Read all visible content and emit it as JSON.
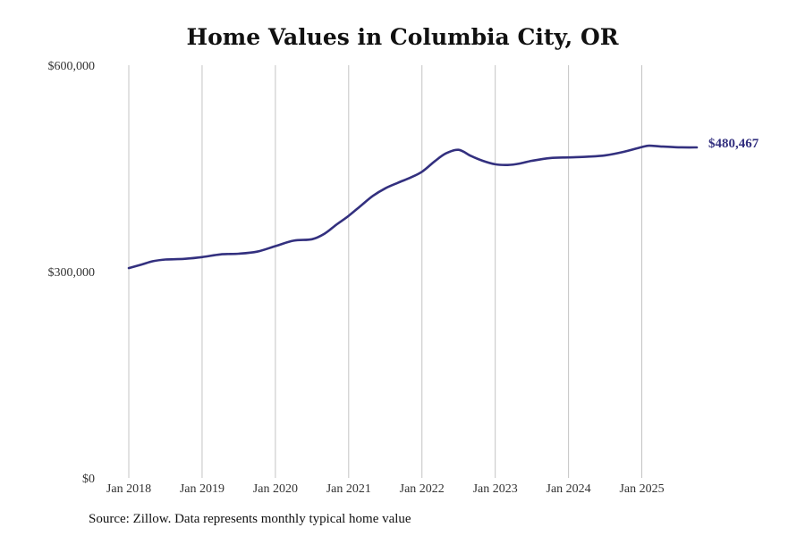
{
  "title": "Home Values in Columbia City, OR",
  "source": "Source: Zillow. Data represents monthly typical home value",
  "colors": {
    "line": "#33307f",
    "grid": "#c4c4c4",
    "text": "#333333"
  },
  "chart_data": {
    "type": "line",
    "title": "Home Values in Columbia City, OR",
    "xlabel": "",
    "ylabel": "",
    "x_range": [
      2018.0,
      2025.75
    ],
    "ylim": [
      0,
      600000
    ],
    "y_ticks": [
      {
        "value": 0,
        "label": "$0"
      },
      {
        "value": 300000,
        "label": "$300,000"
      },
      {
        "value": 600000,
        "label": "$600,000"
      }
    ],
    "x_ticks": [
      {
        "value": 2018,
        "label": "Jan 2018"
      },
      {
        "value": 2019,
        "label": "Jan 2019"
      },
      {
        "value": 2020,
        "label": "Jan 2020"
      },
      {
        "value": 2021,
        "label": "Jan 2021"
      },
      {
        "value": 2022,
        "label": "Jan 2022"
      },
      {
        "value": 2023,
        "label": "Jan 2023"
      },
      {
        "value": 2024,
        "label": "Jan 2024"
      },
      {
        "value": 2025,
        "label": "Jan 2025"
      }
    ],
    "grid": "vertical",
    "series": [
      {
        "name": "Typical home value",
        "end_label": "$480,467",
        "points": [
          [
            2018.0,
            305000
          ],
          [
            2018.17,
            310000
          ],
          [
            2018.33,
            315000
          ],
          [
            2018.5,
            317500
          ],
          [
            2018.75,
            318500
          ],
          [
            2019.0,
            321000
          ],
          [
            2019.25,
            325000
          ],
          [
            2019.5,
            326000
          ],
          [
            2019.75,
            329000
          ],
          [
            2020.0,
            337000
          ],
          [
            2020.25,
            345000
          ],
          [
            2020.5,
            347000
          ],
          [
            2020.67,
            355000
          ],
          [
            2020.83,
            368000
          ],
          [
            2021.0,
            381000
          ],
          [
            2021.17,
            396000
          ],
          [
            2021.33,
            410000
          ],
          [
            2021.5,
            421000
          ],
          [
            2021.67,
            429000
          ],
          [
            2021.83,
            436000
          ],
          [
            2022.0,
            445000
          ],
          [
            2022.17,
            460000
          ],
          [
            2022.33,
            472000
          ],
          [
            2022.5,
            477000
          ],
          [
            2022.67,
            468000
          ],
          [
            2022.83,
            461000
          ],
          [
            2023.0,
            456000
          ],
          [
            2023.17,
            455000
          ],
          [
            2023.33,
            457000
          ],
          [
            2023.5,
            461000
          ],
          [
            2023.75,
            465000
          ],
          [
            2024.0,
            466000
          ],
          [
            2024.25,
            467000
          ],
          [
            2024.5,
            469000
          ],
          [
            2024.75,
            474000
          ],
          [
            2025.0,
            481000
          ],
          [
            2025.1,
            483000
          ],
          [
            2025.25,
            482000
          ],
          [
            2025.5,
            480700
          ],
          [
            2025.75,
            480467
          ]
        ]
      }
    ]
  }
}
